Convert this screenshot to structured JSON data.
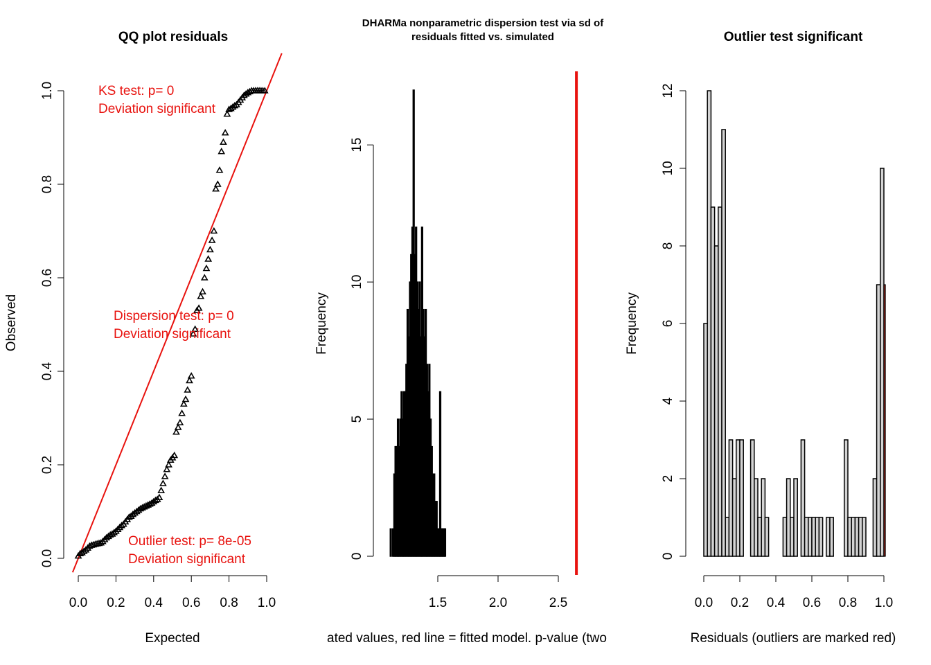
{
  "chart_data": [
    {
      "type": "scatter",
      "title": "QQ plot residuals",
      "xlabel": "Expected",
      "ylabel": "Observed",
      "xlim": [
        0,
        1
      ],
      "ylim": [
        0,
        1
      ],
      "xticks": [
        "0.0",
        "0.2",
        "0.4",
        "0.6",
        "0.8",
        "1.0"
      ],
      "yticks": [
        "0.0",
        "0.2",
        "0.4",
        "0.6",
        "0.8",
        "1.0"
      ],
      "marker": "open-triangle",
      "reference_line": {
        "slope": 1,
        "intercept": 0,
        "color": "#e8120e"
      },
      "annotations": [
        {
          "line1": "KS test: p= 0",
          "line2": "Deviation  significant",
          "color": "#e8120e"
        },
        {
          "line1": "Dispersion test: p= 0",
          "line2": "Deviation  significant",
          "color": "#e8120e"
        },
        {
          "line1": "Outlier test: p= 8e-05",
          "line2": "Deviation  significant",
          "color": "#e8120e"
        }
      ],
      "points": [
        [
          0.0,
          0.005
        ],
        [
          0.01,
          0.01
        ],
        [
          0.02,
          0.012
        ],
        [
          0.03,
          0.015
        ],
        [
          0.04,
          0.018
        ],
        [
          0.05,
          0.022
        ],
        [
          0.06,
          0.026
        ],
        [
          0.07,
          0.028
        ],
        [
          0.08,
          0.029
        ],
        [
          0.09,
          0.03
        ],
        [
          0.1,
          0.031
        ],
        [
          0.11,
          0.032
        ],
        [
          0.12,
          0.033
        ],
        [
          0.13,
          0.036
        ],
        [
          0.14,
          0.04
        ],
        [
          0.15,
          0.044
        ],
        [
          0.16,
          0.047
        ],
        [
          0.17,
          0.05
        ],
        [
          0.18,
          0.052
        ],
        [
          0.19,
          0.055
        ],
        [
          0.2,
          0.058
        ],
        [
          0.21,
          0.062
        ],
        [
          0.22,
          0.066
        ],
        [
          0.23,
          0.07
        ],
        [
          0.24,
          0.073
        ],
        [
          0.25,
          0.078
        ],
        [
          0.26,
          0.083
        ],
        [
          0.27,
          0.088
        ],
        [
          0.28,
          0.09
        ],
        [
          0.29,
          0.094
        ],
        [
          0.3,
          0.097
        ],
        [
          0.31,
          0.1
        ],
        [
          0.32,
          0.103
        ],
        [
          0.33,
          0.106
        ],
        [
          0.34,
          0.108
        ],
        [
          0.35,
          0.11
        ],
        [
          0.36,
          0.112
        ],
        [
          0.37,
          0.114
        ],
        [
          0.38,
          0.116
        ],
        [
          0.39,
          0.118
        ],
        [
          0.4,
          0.121
        ],
        [
          0.41,
          0.124
        ],
        [
          0.42,
          0.126
        ],
        [
          0.43,
          0.13
        ],
        [
          0.44,
          0.145
        ],
        [
          0.45,
          0.16
        ],
        [
          0.46,
          0.175
        ],
        [
          0.47,
          0.19
        ],
        [
          0.48,
          0.2
        ],
        [
          0.49,
          0.21
        ],
        [
          0.5,
          0.215
        ],
        [
          0.51,
          0.22
        ],
        [
          0.52,
          0.27
        ],
        [
          0.53,
          0.28
        ],
        [
          0.54,
          0.29
        ],
        [
          0.55,
          0.31
        ],
        [
          0.56,
          0.33
        ],
        [
          0.57,
          0.34
        ],
        [
          0.58,
          0.36
        ],
        [
          0.59,
          0.38
        ],
        [
          0.6,
          0.39
        ],
        [
          0.61,
          0.48
        ],
        [
          0.62,
          0.49
        ],
        [
          0.63,
          0.53
        ],
        [
          0.64,
          0.535
        ],
        [
          0.65,
          0.56
        ],
        [
          0.66,
          0.57
        ],
        [
          0.67,
          0.6
        ],
        [
          0.68,
          0.62
        ],
        [
          0.69,
          0.64
        ],
        [
          0.7,
          0.66
        ],
        [
          0.71,
          0.68
        ],
        [
          0.72,
          0.7
        ],
        [
          0.73,
          0.79
        ],
        [
          0.74,
          0.8
        ],
        [
          0.75,
          0.83
        ],
        [
          0.76,
          0.87
        ],
        [
          0.77,
          0.89
        ],
        [
          0.78,
          0.91
        ],
        [
          0.79,
          0.95
        ],
        [
          0.8,
          0.96
        ],
        [
          0.81,
          0.962
        ],
        [
          0.82,
          0.965
        ],
        [
          0.83,
          0.968
        ],
        [
          0.84,
          0.97
        ],
        [
          0.85,
          0.975
        ],
        [
          0.86,
          0.98
        ],
        [
          0.87,
          0.985
        ],
        [
          0.88,
          0.99
        ],
        [
          0.89,
          0.993
        ],
        [
          0.9,
          0.996
        ],
        [
          0.91,
          0.998
        ],
        [
          0.92,
          1.0
        ],
        [
          0.93,
          1.0
        ],
        [
          0.94,
          1.0
        ],
        [
          0.95,
          1.0
        ],
        [
          0.96,
          1.0
        ],
        [
          0.97,
          1.0
        ],
        [
          0.98,
          1.0
        ],
        [
          0.99,
          1.0
        ]
      ]
    },
    {
      "type": "histogram",
      "title_lines": [
        "DHARMa nonparametric dispersion test via sd of",
        "residuals fitted vs. simulated"
      ],
      "xlabel": "ated values, red line = fitted model. p-value (two",
      "ylabel": "Frequency",
      "xlim": [
        1.0,
        2.5
      ],
      "ylim": [
        0,
        17
      ],
      "xticks": [
        "1.5",
        "2.0",
        "2.5"
      ],
      "yticks": [
        "0",
        "5",
        "10",
        "15"
      ],
      "fitted_value_line": {
        "x": 2.65,
        "color": "#e8120e"
      },
      "bar_values_x": [
        1.11,
        1.13,
        1.14,
        1.15,
        1.16,
        1.17,
        1.18,
        1.19,
        1.2,
        1.21,
        1.22,
        1.23,
        1.24,
        1.25,
        1.26,
        1.27,
        1.28,
        1.29,
        1.3,
        1.31,
        1.32,
        1.33,
        1.34,
        1.35,
        1.36,
        1.37,
        1.38,
        1.39,
        1.4,
        1.41,
        1.42,
        1.43,
        1.44,
        1.45,
        1.46,
        1.47,
        1.48,
        1.49,
        1.5,
        1.51,
        1.52,
        1.53,
        1.54,
        1.55,
        1.56
      ],
      "bar_counts": [
        1,
        1,
        3,
        4,
        4,
        5,
        4,
        5,
        6,
        5,
        6,
        6,
        7,
        9,
        8,
        10,
        11,
        12,
        17,
        11,
        12,
        10,
        9,
        10,
        8,
        12,
        9,
        8,
        9,
        7,
        6,
        7,
        5,
        4,
        3,
        3,
        2,
        2,
        1,
        1,
        6,
        1,
        1,
        1,
        1
      ]
    },
    {
      "type": "bar",
      "title": "Outlier test significant",
      "title_color": "#e8120e",
      "xlabel": "Residuals (outliers are marked red)",
      "ylabel": "Frequency",
      "xlim": [
        0,
        1
      ],
      "ylim": [
        0,
        12
      ],
      "xticks": [
        "0.0",
        "0.2",
        "0.4",
        "0.6",
        "0.8",
        "1.0"
      ],
      "yticks": [
        "0",
        "2",
        "4",
        "6",
        "8",
        "10",
        "12"
      ],
      "bin_width": 0.02,
      "counts": [
        6,
        12,
        9,
        8,
        9,
        11,
        1,
        3,
        2,
        3,
        3,
        0,
        0,
        3,
        2,
        1,
        2,
        1,
        0,
        0,
        0,
        0,
        1,
        2,
        1,
        2,
        0,
        3,
        1,
        1,
        1,
        1,
        1,
        0,
        1,
        1,
        0,
        0,
        0,
        3,
        1,
        1,
        1,
        1,
        1,
        0,
        0,
        2,
        7,
        10
      ],
      "outlier_bar": {
        "x_index": 50,
        "count": 7,
        "color": "#d52b1e"
      },
      "bar_color": "#d3d3d3"
    }
  ]
}
